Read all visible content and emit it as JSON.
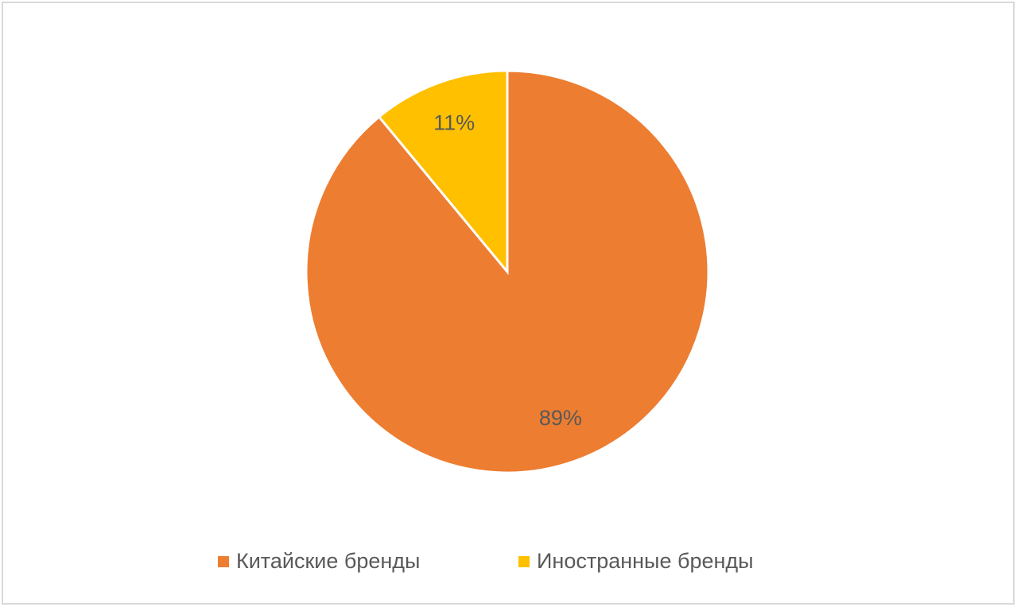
{
  "chart_data": {
    "type": "pie",
    "categories": [
      "Китайские бренды",
      "Иностранные бренды"
    ],
    "values": [
      89,
      11
    ],
    "value_labels": [
      "89%",
      "11%"
    ],
    "colors": [
      "#ED7D31",
      "#FFC000"
    ],
    "legend": "bottom"
  }
}
